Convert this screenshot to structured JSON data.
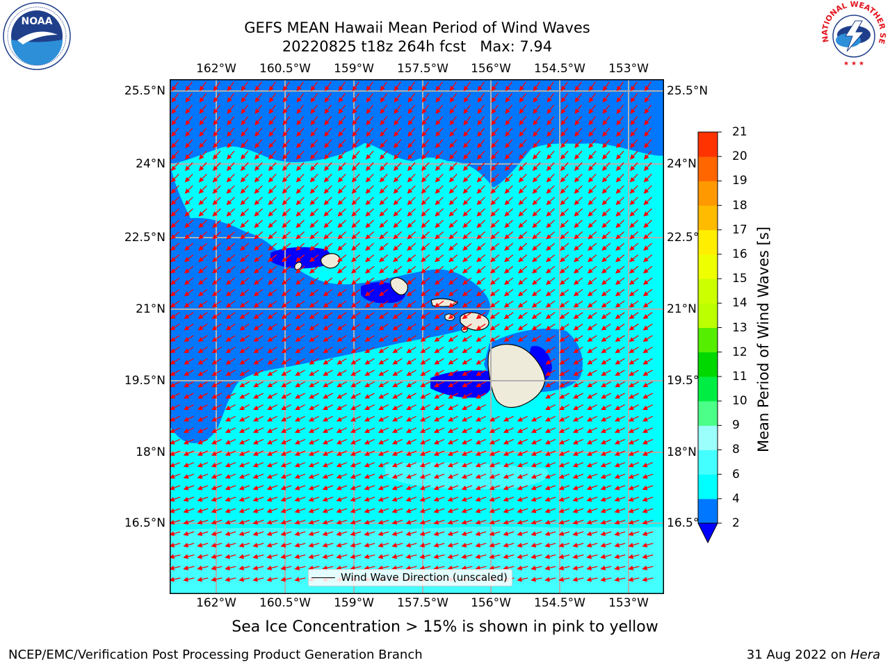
{
  "header": {
    "title_line1": "GEFS MEAN Hawaii Mean Period of Wind Waves",
    "title_line2": "20220825 t18z 264h fcst   Max: 7.94"
  },
  "logos": {
    "noaa": {
      "text": "NOAA",
      "ring_text": "NATIONAL OCEANIC AND ATMOSPHERIC ADMINISTRATION · U.S. DEPARTMENT OF COMMERCE"
    },
    "nws": {
      "ring_text": "NATIONAL WEATHER SERVICE"
    }
  },
  "map": {
    "lon_labels": [
      "162°W",
      "160.5°W",
      "159°W",
      "157.5°W",
      "156°W",
      "154.5°W",
      "153°W"
    ],
    "lat_labels": [
      "25.5°N",
      "24°N",
      "22.5°N",
      "21°N",
      "19.5°N",
      "18°N",
      "16.5°N"
    ],
    "legend_label": "Wind Wave Direction (unscaled)",
    "land_color": "#efebdb",
    "arrow_color": "#ff0000",
    "grid_color": "#b0b0b0"
  },
  "colorbar": {
    "label": "Mean Period of Wind Waves [s]",
    "tick_labels": [
      "2",
      "4",
      "6",
      "8",
      "9",
      "10",
      "11",
      "12",
      "13",
      "14",
      "15",
      "16",
      "17",
      "18",
      "19",
      "20",
      "21"
    ],
    "levels": [
      2,
      4,
      6,
      8,
      9,
      10,
      11,
      12,
      13,
      14,
      15,
      16,
      17,
      18,
      19,
      20,
      21
    ],
    "colors": [
      "#0077ff",
      "#00ffff",
      "#44ffff",
      "#9bfffb",
      "#4bff88",
      "#00ee44",
      "#00d800",
      "#55ee00",
      "#bbff00",
      "#ccff00",
      "#eeff00",
      "#ffee00",
      "#ffbb00",
      "#ff9900",
      "#ff6600",
      "#ff3300",
      "#ff0000"
    ],
    "under_color": "#0000ff"
  },
  "footer": {
    "sea_ice_note": "Sea Ice Concentration > 15% is shown in pink to yellow",
    "credit_left": "NCEP/EMC/Verification Post Processing Product Generation Branch",
    "credit_right_prefix": "31 Aug 2022 on ",
    "credit_right_machine": "Hera"
  }
}
